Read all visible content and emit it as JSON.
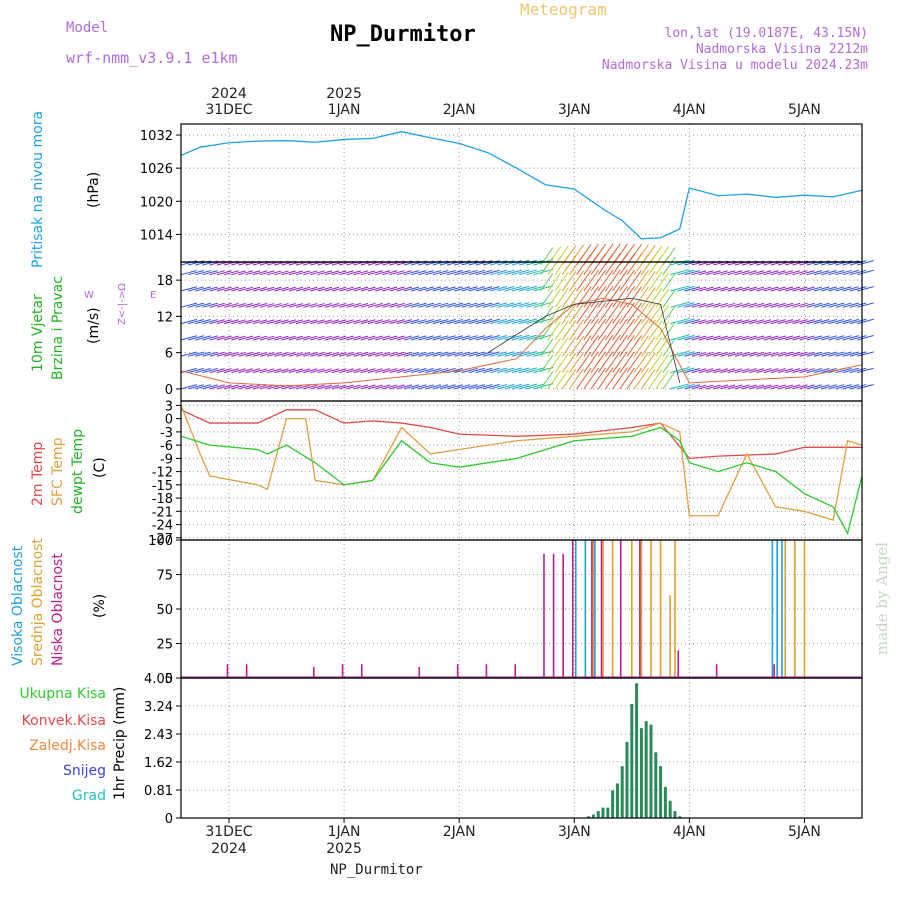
{
  "header": {
    "model_label": "Model",
    "model_name": "wrf-nmm_v3.9.1  e1km",
    "title": "NP_Durmitor",
    "subtitle": "Meteogram",
    "coords": "lon,lat (19.0187E, 43.15N)",
    "elevation": "Nadmorska Visina 2212m",
    "model_elevation": "Nadmorska Visina u modelu 2024.23m"
  },
  "footer": {
    "station": "NP_Durmitor"
  },
  "watermark": "made by Angel",
  "time_axis": {
    "start": "2024-12-30T14:00",
    "end": "2025-01-05T12:00",
    "day_ticks": [
      {
        "label": "31DEC",
        "year": "2024",
        "date": "2024-12-31T00:00"
      },
      {
        "label": "1JAN",
        "year": "2025",
        "date": "2025-01-01T00:00"
      },
      {
        "label": "2JAN",
        "year": "",
        "date": "2025-01-02T00:00"
      },
      {
        "label": "3JAN",
        "year": "",
        "date": "2025-01-03T00:00"
      },
      {
        "label": "4JAN",
        "year": "",
        "date": "2025-01-04T00:00"
      },
      {
        "label": "5JAN",
        "year": "",
        "date": "2025-01-05T00:00"
      }
    ]
  },
  "colors": {
    "pressure": "#1aa3e6",
    "temp2m": "#e34a4a",
    "sfc_temp": "#e0a040",
    "dewpt": "#2ccb2c",
    "wind_speed": "#e06a3a",
    "wind_dir": "#333333",
    "high_cloud": "#22a0dd",
    "mid_cloud": "#e0a030",
    "low_cloud": "#c01890",
    "total_precip": "#2a8a5a",
    "conv_precip": "#e34a4a",
    "frozen_precip": "#f08a3a",
    "snow": "#4040e0",
    "hail": "#20c0c0",
    "label_purple": "#b36ad9"
  },
  "chart_data": [
    {
      "type": "line",
      "panel": "pressure",
      "ylabel_main": "Pritisak na nivou mora",
      "unit": "(hPa)",
      "yticks": [
        1014,
        1020,
        1026,
        1032
      ],
      "ylim": [
        1009,
        1034
      ],
      "grid": true,
      "series": [
        {
          "x": [
            "2024-12-30T14:00",
            "2024-12-30T18:00",
            "2024-12-31T00:00",
            "2024-12-31T06:00",
            "2024-12-31T12:00",
            "2024-12-31T18:00",
            "2025-01-01T00:00",
            "2025-01-01T06:00",
            "2025-01-01T12:00",
            "2025-01-01T18:00",
            "2025-01-02T00:00",
            "2025-01-02T06:00",
            "2025-01-02T12:00",
            "2025-01-02T18:00",
            "2025-01-03T00:00",
            "2025-01-03T06:00",
            "2025-01-03T10:00",
            "2025-01-03T14:00",
            "2025-01-03T18:00",
            "2025-01-03T22:00",
            "2025-01-04T00:00",
            "2025-01-04T06:00",
            "2025-01-04T12:00",
            "2025-01-04T18:00",
            "2025-01-05T00:00",
            "2025-01-05T06:00",
            "2025-01-05T12:00"
          ],
          "values": [
            1028.3,
            1029.8,
            1030.6,
            1030.9,
            1031.0,
            1030.7,
            1031.2,
            1031.4,
            1032.6,
            1031.5,
            1030.5,
            1028.8,
            1026.0,
            1023.0,
            1022.2,
            1018.6,
            1016.5,
            1013.2,
            1013.4,
            1015.0,
            1022.4,
            1021.0,
            1021.3,
            1020.7,
            1021.1,
            1020.8,
            1022.0
          ]
        }
      ]
    },
    {
      "type": "line",
      "panel": "wind",
      "ylabel_main": "10m Vjetar",
      "ylabel_sub": "Brzina i Pravac",
      "unit": "(m/s)",
      "compass_ns": "Z<-|->Ω",
      "compass_w": "W",
      "compass_e": "E",
      "yticks": [
        0,
        6,
        12,
        18
      ],
      "ylim": [
        -2,
        21
      ],
      "grid": true,
      "series": [
        {
          "name": "speed",
          "x": [
            "2024-12-30T14:00",
            "2024-12-31T00:00",
            "2024-12-31T12:00",
            "2025-01-01T00:00",
            "2025-01-01T12:00",
            "2025-01-02T00:00",
            "2025-01-02T12:00",
            "2025-01-02T18:00",
            "2025-01-03T00:00",
            "2025-01-03T06:00",
            "2025-01-03T12:00",
            "2025-01-03T18:00",
            "2025-01-04T00:00",
            "2025-01-04T12:00",
            "2025-01-05T00:00",
            "2025-01-05T12:00"
          ],
          "values": [
            3,
            1,
            0.5,
            1,
            2,
            3,
            5,
            10,
            14,
            15,
            14,
            10,
            1,
            1.5,
            2,
            4
          ]
        },
        {
          "name": "direction",
          "x": [
            "2025-01-02T06:00",
            "2025-01-02T18:00",
            "2025-01-03T00:00",
            "2025-01-03T12:00",
            "2025-01-03T18:00",
            "2025-01-03T22:00"
          ],
          "values": [
            6,
            12,
            14,
            15,
            14,
            1
          ]
        }
      ]
    },
    {
      "type": "line",
      "panel": "temperature",
      "ylabel_a": "2m Temp",
      "ylabel_b": "SFC Temp",
      "ylabel_c": "dewpt Temp",
      "unit": "(C)",
      "yticks": [
        3,
        0,
        -3,
        -6,
        -9,
        -12,
        -15,
        -18,
        -21,
        -24,
        -27
      ],
      "ylim": [
        -27.5,
        4
      ],
      "grid": true,
      "series": [
        {
          "name": "2m Temp",
          "x": [
            "2024-12-30T14:00",
            "2024-12-30T20:00",
            "2024-12-31T06:00",
            "2024-12-31T12:00",
            "2024-12-31T18:00",
            "2025-01-01T00:00",
            "2025-01-01T06:00",
            "2025-01-01T12:00",
            "2025-01-01T18:00",
            "2025-01-02T00:00",
            "2025-01-02T12:00",
            "2025-01-03T00:00",
            "2025-01-03T12:00",
            "2025-01-03T18:00",
            "2025-01-04T00:00",
            "2025-01-04T06:00",
            "2025-01-04T18:00",
            "2025-01-05T00:00",
            "2025-01-05T12:00"
          ],
          "values": [
            2,
            -1,
            -1,
            2,
            2,
            -1,
            -0.5,
            -1,
            -2,
            -3.5,
            -4,
            -3.5,
            -2,
            -1,
            -9,
            -8.5,
            -8,
            -6.5,
            -6.5
          ]
        },
        {
          "name": "SFC Temp",
          "x": [
            "2024-12-30T14:00",
            "2024-12-30T18:00",
            "2024-12-30T20:00",
            "2024-12-31T06:00",
            "2024-12-31T08:00",
            "2024-12-31T12:00",
            "2024-12-31T16:00",
            "2024-12-31T18:00",
            "2025-01-01T00:00",
            "2025-01-01T06:00",
            "2025-01-01T12:00",
            "2025-01-01T18:00",
            "2025-01-02T00:00",
            "2025-01-02T12:00",
            "2025-01-03T00:00",
            "2025-01-03T12:00",
            "2025-01-03T18:00",
            "2025-01-03T22:00",
            "2025-01-04T00:00",
            "2025-01-04T06:00",
            "2025-01-04T12:00",
            "2025-01-04T18:00",
            "2025-01-05T00:00",
            "2025-01-05T06:00",
            "2025-01-05T09:00",
            "2025-01-05T12:00"
          ],
          "values": [
            3,
            -8,
            -13,
            -15,
            -16,
            0,
            0,
            -14,
            -15,
            -14,
            -2,
            -8,
            -7,
            -5,
            -4,
            -3,
            -1,
            -3,
            -22,
            -22,
            -8,
            -20,
            -21,
            -23,
            -5,
            -6
          ]
        },
        {
          "name": "dewpt Temp",
          "x": [
            "2024-12-30T14:00",
            "2024-12-30T20:00",
            "2024-12-31T06:00",
            "2024-12-31T08:00",
            "2024-12-31T12:00",
            "2024-12-31T18:00",
            "2025-01-01T00:00",
            "2025-01-01T06:00",
            "2025-01-01T12:00",
            "2025-01-01T18:00",
            "2025-01-02T00:00",
            "2025-01-02T12:00",
            "2025-01-03T00:00",
            "2025-01-03T12:00",
            "2025-01-03T18:00",
            "2025-01-03T22:00",
            "2025-01-04T00:00",
            "2025-01-04T06:00",
            "2025-01-04T12:00",
            "2025-01-04T18:00",
            "2025-01-05T00:00",
            "2025-01-05T06:00",
            "2025-01-05T09:00",
            "2025-01-05T12:00"
          ],
          "values": [
            -4,
            -6,
            -7,
            -8,
            -6,
            -10,
            -15,
            -14,
            -5,
            -10,
            -11,
            -9,
            -5,
            -4,
            -2,
            -5,
            -10,
            -12,
            -10,
            -12,
            -17,
            -20,
            -26,
            -13
          ]
        }
      ]
    },
    {
      "type": "bar",
      "panel": "clouds",
      "ylabel_a": "Visoka Oblacnost",
      "ylabel_b": "Srednja Oblacnost",
      "ylabel_c": "Niska Oblacnost",
      "unit": "(%)",
      "yticks": [
        0,
        25,
        50,
        75,
        100
      ],
      "ylim": [
        0,
        100
      ],
      "grid": true,
      "series": [
        {
          "name": "Niska",
          "x": [
            "2024-12-31T00:00",
            "2024-12-31T04:00",
            "2024-12-31T18:00",
            "2025-01-01T00:00",
            "2025-01-01T04:00",
            "2025-01-01T16:00",
            "2025-01-02T00:00",
            "2025-01-02T06:00",
            "2025-01-02T12:00",
            "2025-01-02T18:00",
            "2025-01-02T20:00",
            "2025-01-02T22:00",
            "2025-01-03T00:00",
            "2025-01-03T04:00",
            "2025-01-03T06:00",
            "2025-01-03T10:00",
            "2025-01-03T14:00",
            "2025-01-03T22:00",
            "2025-01-04T06:00",
            "2025-01-04T18:00"
          ],
          "values": [
            10,
            10,
            8,
            10,
            10,
            8,
            10,
            10,
            10,
            90,
            90,
            90,
            100,
            100,
            100,
            100,
            100,
            20,
            10,
            10
          ]
        },
        {
          "name": "Srednja",
          "x": [
            "2025-01-03T04:00",
            "2025-01-03T06:00",
            "2025-01-03T08:00",
            "2025-01-03T12:00",
            "2025-01-03T14:00",
            "2025-01-03T16:00",
            "2025-01-03T18:00",
            "2025-01-03T20:00",
            "2025-01-03T21:00",
            "2025-01-04T20:00",
            "2025-01-04T22:00",
            "2025-01-05T00:00"
          ],
          "values": [
            100,
            100,
            100,
            100,
            100,
            100,
            100,
            60,
            100,
            100,
            100,
            100
          ]
        },
        {
          "name": "Visoka",
          "x": [
            "2025-01-03T00:00",
            "2025-01-03T02:00",
            "2025-01-03T04:00",
            "2025-01-04T17:00",
            "2025-01-04T18:00",
            "2025-01-04T19:00"
          ],
          "values": [
            100,
            100,
            100,
            100,
            100,
            100
          ]
        }
      ]
    },
    {
      "type": "bar",
      "panel": "precip",
      "ylabel": "1hr Precip (mm)",
      "legend": [
        "Ukupna Kisa",
        "Konvek.Kisa",
        "Zaledj.Kisa",
        "Snijeg",
        "Grad"
      ],
      "yticks": [
        0,
        0.81,
        1.62,
        2.43,
        3.24,
        4.05
      ],
      "ylim": [
        0,
        4.05
      ],
      "grid": true,
      "series": [
        {
          "name": "Ukupna Kisa",
          "x": [
            "2025-01-03T03:00",
            "2025-01-03T04:00",
            "2025-01-03T05:00",
            "2025-01-03T06:00",
            "2025-01-03T07:00",
            "2025-01-03T08:00",
            "2025-01-03T09:00",
            "2025-01-03T10:00",
            "2025-01-03T11:00",
            "2025-01-03T12:00",
            "2025-01-03T13:00",
            "2025-01-03T14:00",
            "2025-01-03T15:00",
            "2025-01-03T16:00",
            "2025-01-03T17:00",
            "2025-01-03T18:00",
            "2025-01-03T19:00",
            "2025-01-03T20:00",
            "2025-01-03T21:00",
            "2025-01-03T22:00"
          ],
          "values": [
            0.05,
            0.1,
            0.2,
            0.3,
            0.3,
            0.8,
            1.0,
            1.5,
            2.2,
            3.3,
            3.9,
            2.6,
            2.8,
            2.7,
            1.9,
            1.5,
            0.9,
            0.5,
            0.2,
            0.05
          ]
        }
      ]
    }
  ]
}
